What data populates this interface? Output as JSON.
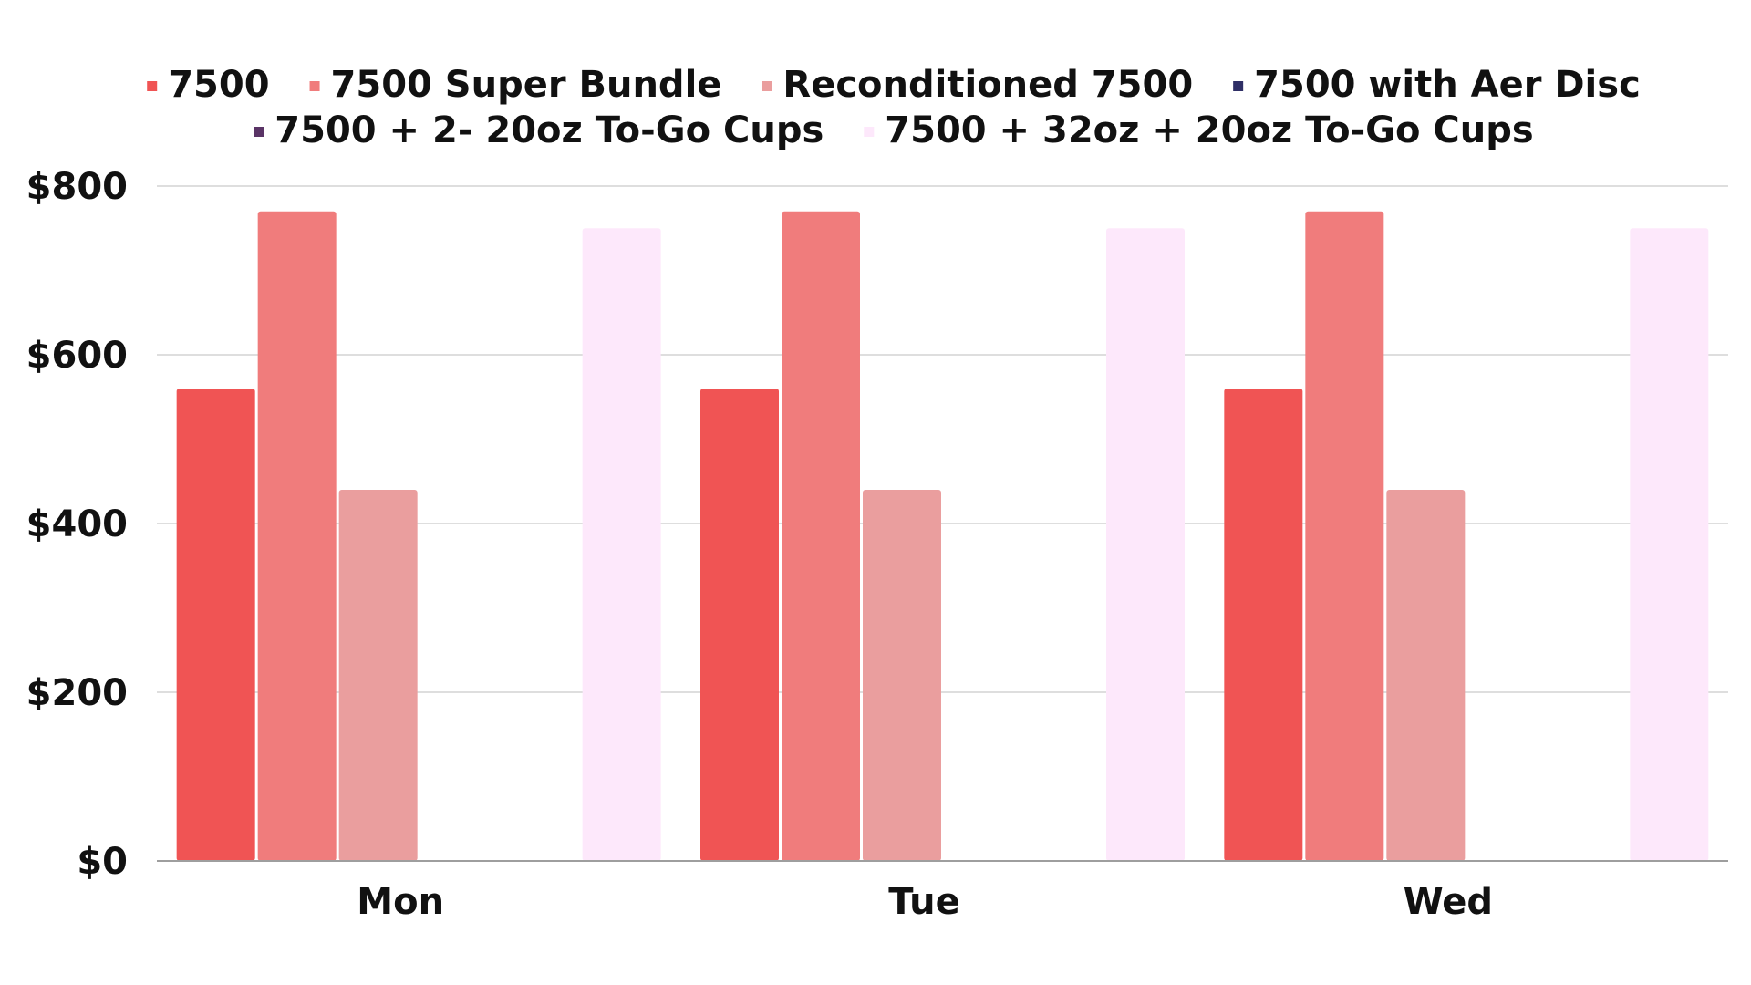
{
  "chart_data": {
    "type": "bar",
    "categories": [
      "Mon",
      "Tue",
      "Wed"
    ],
    "series": [
      {
        "name": "7500",
        "color": "#f05454",
        "values": [
          560,
          560,
          560
        ]
      },
      {
        "name": "7500 Super Bundle",
        "color": "#f07c7c",
        "values": [
          770,
          770,
          770
        ]
      },
      {
        "name": "Reconditioned 7500",
        "color": "#ea9e9e",
        "values": [
          440,
          440,
          440
        ]
      },
      {
        "name": "7500 with Aer Disc",
        "color": "#2f2f66",
        "values": [
          0,
          0,
          0
        ]
      },
      {
        "name": "7500 + 2- 20oz To-Go Cups",
        "color": "#5a3466",
        "values": [
          0,
          0,
          0
        ]
      },
      {
        "name": "7500 + 32oz + 20oz To-Go Cups",
        "color": "#fde8fb",
        "values": [
          750,
          750,
          750
        ]
      }
    ],
    "y_ticks": [
      "$0",
      "$200",
      "$400",
      "$600",
      "$800"
    ],
    "ylim": [
      0,
      800
    ],
    "grid": true,
    "legend_position": "top"
  }
}
